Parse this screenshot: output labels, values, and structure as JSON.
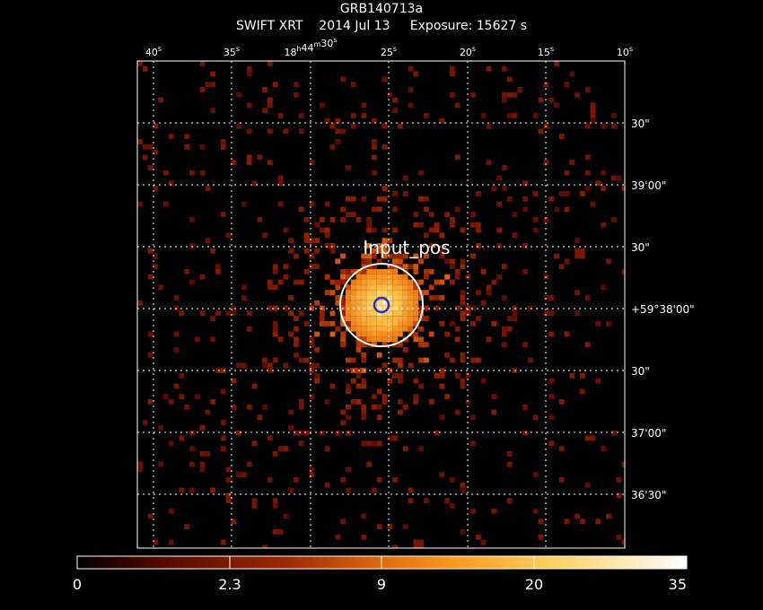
{
  "header": {
    "object": "GRB140713a",
    "instrument": "SWIFT XRT",
    "date": "2014 Jul 13",
    "exposure": "Exposure: 15627 s"
  },
  "ra_ticks": [
    {
      "label": "40",
      "sup": "s"
    },
    {
      "label": "35",
      "sup": "s"
    },
    {
      "label": "18",
      "sup": "h",
      "label2": "44",
      "sup2": "m",
      "label3": "30",
      "sup3": "s"
    },
    {
      "label": "25",
      "sup": "s"
    },
    {
      "label": "20",
      "sup": "s"
    },
    {
      "label": "15",
      "sup": "s"
    },
    {
      "label": "10",
      "sup": "s"
    }
  ],
  "dec_ticks": [
    "30\"",
    "39'00\"",
    "30\"",
    "+59°38'00\"",
    "30\"",
    "37'00\"",
    "36'30\""
  ],
  "source_label": "Input_pos",
  "colorbar": {
    "tick_labels": [
      "0",
      "2.3",
      "9",
      "20",
      "35"
    ],
    "stops": [
      "#000000",
      "#5a0a00",
      "#a02a00",
      "#e06a10",
      "#ff9a20",
      "#ffd060",
      "#ffffff"
    ]
  },
  "colors": {
    "grid": "#ffffff",
    "circle_source": "#ffffff",
    "circle_input": "#2233cc"
  }
}
